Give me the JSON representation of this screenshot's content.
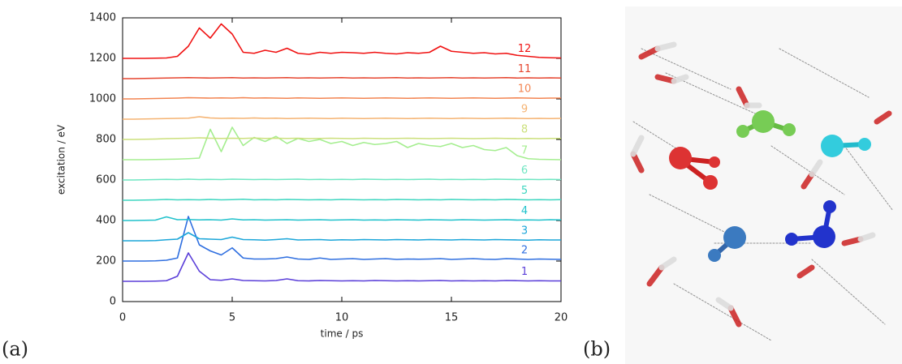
{
  "chart_data": {
    "type": "line",
    "x_label": "time / ps",
    "y_label": "excitation / eV",
    "xlim": [
      0,
      20
    ],
    "ylim": [
      0,
      1400
    ],
    "xticks": [
      0,
      5,
      10,
      15,
      20
    ],
    "yticks": [
      0,
      200,
      400,
      600,
      800,
      1000,
      1200,
      1400
    ],
    "x": [
      0,
      0.5,
      1,
      1.5,
      2,
      2.5,
      3,
      3.5,
      4,
      4.5,
      5,
      5.5,
      6,
      6.5,
      7,
      7.5,
      8,
      8.5,
      9,
      9.5,
      10,
      10.5,
      11,
      11.5,
      12,
      12.5,
      13,
      13.5,
      14,
      14.5,
      15,
      15.5,
      16,
      16.5,
      17,
      17.5,
      18,
      18.5,
      19,
      19.5,
      20
    ],
    "series": [
      {
        "name": "1",
        "color": "#5b3fd9",
        "values": [
          100,
          100,
          100,
          101,
          103,
          125,
          240,
          150,
          108,
          105,
          112,
          104,
          103,
          102,
          104,
          112,
          103,
          102,
          104,
          103,
          102,
          103,
          102,
          104,
          103,
          102,
          103,
          102,
          103,
          104,
          102,
          103,
          102,
          103,
          102,
          104,
          103,
          102,
          103,
          102,
          102
        ]
      },
      {
        "name": "2",
        "color": "#2f6fe0",
        "values": [
          200,
          200,
          200,
          201,
          204,
          215,
          420,
          280,
          250,
          230,
          265,
          215,
          210,
          210,
          212,
          220,
          210,
          208,
          215,
          208,
          210,
          212,
          208,
          210,
          212,
          208,
          210,
          209,
          210,
          212,
          208,
          210,
          212,
          209,
          208,
          212,
          210,
          208,
          210,
          209,
          208
        ]
      },
      {
        "name": "3",
        "color": "#1ba6d9",
        "values": [
          300,
          300,
          300,
          301,
          305,
          308,
          340,
          310,
          308,
          306,
          318,
          306,
          305,
          303,
          306,
          310,
          304,
          305,
          306,
          303,
          305,
          304,
          306,
          305,
          304,
          306,
          305,
          304,
          306,
          305,
          304,
          306,
          305,
          304,
          306,
          305,
          304,
          303,
          305,
          304,
          304
        ]
      },
      {
        "name": "4",
        "color": "#22c2cc",
        "values": [
          400,
          400,
          401,
          402,
          418,
          404,
          405,
          403,
          404,
          402,
          408,
          403,
          404,
          402,
          403,
          404,
          402,
          403,
          404,
          402,
          403,
          404,
          402,
          403,
          402,
          404,
          403,
          402,
          404,
          403,
          402,
          404,
          403,
          402,
          403,
          404,
          402,
          403,
          402,
          404,
          403
        ]
      },
      {
        "name": "5",
        "color": "#3ed6c0",
        "values": [
          500,
          500,
          501,
          502,
          504,
          502,
          503,
          502,
          504,
          502,
          503,
          505,
          502,
          503,
          502,
          504,
          503,
          502,
          503,
          502,
          504,
          503,
          502,
          503,
          502,
          504,
          503,
          502,
          503,
          502,
          504,
          503,
          502,
          503,
          502,
          504,
          503,
          502,
          503,
          502,
          503
        ]
      },
      {
        "name": "6",
        "color": "#6fe6c2",
        "values": [
          600,
          600,
          601,
          602,
          603,
          602,
          604,
          602,
          603,
          602,
          604,
          603,
          602,
          603,
          602,
          603,
          604,
          602,
          603,
          602,
          603,
          602,
          604,
          603,
          602,
          603,
          602,
          603,
          604,
          602,
          603,
          602,
          603,
          602,
          604,
          603,
          602,
          603,
          602,
          603,
          602
        ]
      },
      {
        "name": "7",
        "color": "#a5ee90",
        "values": [
          700,
          700,
          700,
          701,
          702,
          703,
          705,
          708,
          850,
          740,
          860,
          770,
          810,
          790,
          815,
          780,
          805,
          790,
          800,
          780,
          790,
          770,
          785,
          775,
          780,
          790,
          760,
          780,
          770,
          765,
          780,
          760,
          770,
          750,
          745,
          760,
          720,
          705,
          702,
          701,
          700
        ]
      },
      {
        "name": "8",
        "color": "#cce07c",
        "values": [
          800,
          800,
          801,
          802,
          804,
          805,
          806,
          808,
          806,
          805,
          806,
          805,
          807,
          805,
          806,
          805,
          806,
          804,
          805,
          806,
          805,
          804,
          806,
          805,
          804,
          805,
          806,
          805,
          804,
          805,
          806,
          805,
          804,
          805,
          806,
          805,
          804,
          805,
          804,
          805,
          805
        ]
      },
      {
        "name": "9",
        "color": "#f5b372",
        "values": [
          900,
          900,
          901,
          902,
          903,
          904,
          905,
          912,
          906,
          904,
          905,
          904,
          906,
          904,
          905,
          903,
          904,
          905,
          904,
          903,
          905,
          904,
          903,
          904,
          905,
          904,
          903,
          904,
          905,
          904,
          903,
          905,
          904,
          903,
          904,
          905,
          904,
          903,
          904,
          903,
          904
        ]
      },
      {
        "name": "10",
        "color": "#f38552",
        "values": [
          1000,
          1000,
          1001,
          1002,
          1003,
          1004,
          1006,
          1005,
          1004,
          1005,
          1004,
          1006,
          1004,
          1005,
          1004,
          1003,
          1005,
          1004,
          1003,
          1004,
          1005,
          1004,
          1003,
          1004,
          1005,
          1004,
          1003,
          1004,
          1005,
          1004,
          1003,
          1004,
          1005,
          1004,
          1003,
          1004,
          1005,
          1004,
          1003,
          1004,
          1004
        ]
      },
      {
        "name": "11",
        "color": "#e64630",
        "values": [
          1100,
          1100,
          1101,
          1102,
          1103,
          1104,
          1105,
          1104,
          1103,
          1104,
          1105,
          1103,
          1104,
          1103,
          1104,
          1105,
          1103,
          1104,
          1103,
          1104,
          1105,
          1103,
          1104,
          1103,
          1104,
          1105,
          1103,
          1104,
          1103,
          1104,
          1105,
          1103,
          1104,
          1103,
          1104,
          1105,
          1103,
          1104,
          1103,
          1104,
          1103
        ]
      },
      {
        "name": "12",
        "color": "#f01212",
        "values": [
          1200,
          1200,
          1200,
          1201,
          1202,
          1210,
          1260,
          1350,
          1300,
          1370,
          1320,
          1230,
          1225,
          1240,
          1230,
          1250,
          1225,
          1220,
          1230,
          1225,
          1230,
          1228,
          1225,
          1230,
          1225,
          1222,
          1228,
          1225,
          1230,
          1260,
          1235,
          1230,
          1225,
          1228,
          1222,
          1225,
          1215,
          1210,
          1205,
          1203,
          1202
        ]
      }
    ]
  },
  "panel_labels": [
    "(a)",
    "(b)"
  ]
}
